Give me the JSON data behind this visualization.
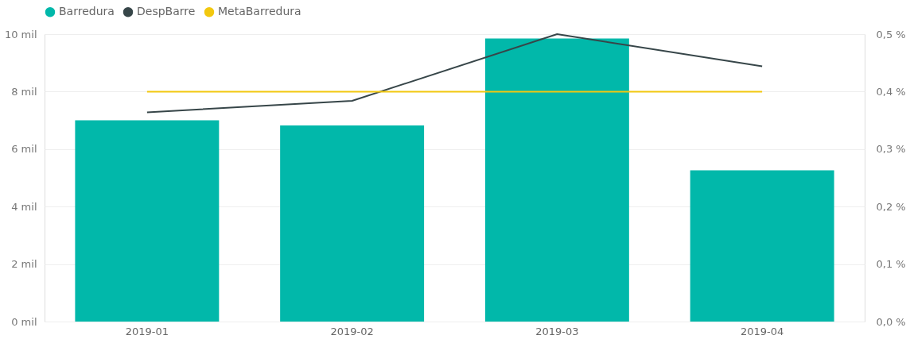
{
  "chart_data": {
    "type": "bar",
    "categories": [
      "2019-01",
      "2019-02",
      "2019-03",
      "2019-04"
    ],
    "series": [
      {
        "name": "Barredura",
        "color": "#01b8aa",
        "values": [
          7.0,
          6.82,
          9.85,
          5.26
        ]
      },
      {
        "name": "DespBarre",
        "color": "#374649",
        "type": "line",
        "axis": "y2",
        "values": [
          0.364,
          0.384,
          0.5,
          0.444
        ]
      },
      {
        "name": "MetaBarredura",
        "color": "#f2c80f",
        "type": "line",
        "axis": "y2",
        "values": [
          0.4,
          0.4,
          0.4,
          0.4
        ]
      }
    ],
    "ylim": [
      0,
      10
    ],
    "yticks": [
      {
        "value": 0,
        "label": "0 mil"
      },
      {
        "value": 2,
        "label": "2 mil"
      },
      {
        "value": 4,
        "label": "4 mil"
      },
      {
        "value": 6,
        "label": "6 mil"
      },
      {
        "value": 8,
        "label": "8 mil"
      },
      {
        "value": 10,
        "label": "10 mil"
      }
    ],
    "y2lim": [
      0,
      0.5
    ],
    "y2ticks": [
      {
        "value": 0,
        "label": "0,0 %"
      },
      {
        "value": 0.1,
        "label": "0,1 %"
      },
      {
        "value": 0.2,
        "label": "0,2 %"
      },
      {
        "value": 0.3,
        "label": "0,3 %"
      },
      {
        "value": 0.4,
        "label": "0,4 %"
      },
      {
        "value": 0.5,
        "label": "0,5 %"
      }
    ],
    "grid": "y",
    "legend": "top left",
    "marker": "none",
    "line_style": "solid"
  }
}
